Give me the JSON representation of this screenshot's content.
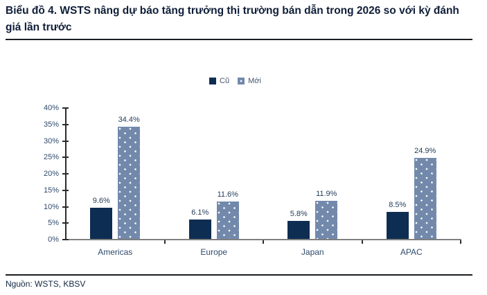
{
  "header": {
    "title": "Biểu đồ 4. WSTS nâng dự báo tăng trưởng thị trường bán dẫn trong 2026 so với kỳ đánh giá lần trước"
  },
  "source": {
    "text": "Nguồn: WSTS, KBSV"
  },
  "colors": {
    "bar_old": "#0e2d52",
    "bar_new": "#7289ab",
    "axis": "#2b2b2b",
    "baseline": "#7f7f7f",
    "label_text": "#2e4a6b",
    "rule": "#1a1d21"
  },
  "chart_data": {
    "type": "bar",
    "title": "Biểu đồ 4. WSTS nâng dự báo tăng trưởng thị trường bán dẫn trong 2026 so với kỳ đánh giá lần trước",
    "categories": [
      "Americas",
      "Europe",
      "Japan",
      "APAC"
    ],
    "series": [
      {
        "name": "Cũ",
        "color": "#0e2d52",
        "pattern": "solid",
        "values": [
          9.6,
          6.1,
          5.8,
          8.5
        ]
      },
      {
        "name": "Mới",
        "color": "#7289ab",
        "pattern": "dotted",
        "values": [
          34.4,
          11.6,
          11.9,
          24.9
        ]
      }
    ],
    "data_labels": [
      [
        "9.6%",
        "6.1%",
        "5.8%",
        "8.5%"
      ],
      [
        "34.4%",
        "11.6%",
        "11.9%",
        "24.9%"
      ]
    ],
    "xlabel": "",
    "ylabel": "",
    "ylim": [
      0,
      40
    ],
    "yticks": [
      "0%",
      "5%",
      "10%",
      "15%",
      "20%",
      "25%",
      "30%",
      "35%",
      "40%"
    ],
    "grid": false,
    "legend_position": "top-center"
  }
}
